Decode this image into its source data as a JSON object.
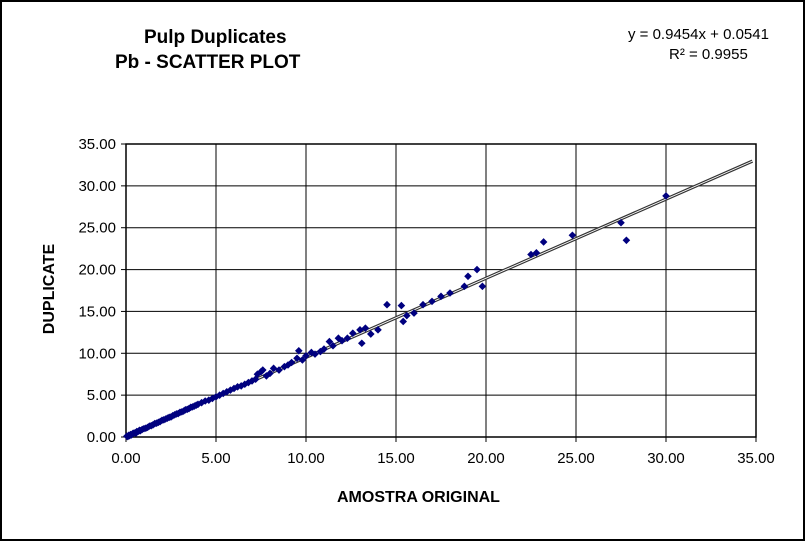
{
  "chart_data": {
    "type": "scatter",
    "title": "Pulp Duplicates",
    "subtitle": "Pb -  SCATTER PLOT",
    "xlabel": "AMOSTRA  ORIGINAL",
    "ylabel": "DUPLICATE",
    "xlim": [
      0,
      35
    ],
    "ylim": [
      0,
      35
    ],
    "xticks": [
      "0.00",
      "5.00",
      "10.00",
      "15.00",
      "20.00",
      "25.00",
      "30.00",
      "35.00"
    ],
    "yticks": [
      "0.00",
      "5.00",
      "10.00",
      "15.00",
      "20.00",
      "25.00",
      "30.00",
      "35.00"
    ],
    "grid": true,
    "trendline": {
      "equation": "y = 0.9454x + 0.0541",
      "r_squared": "R² = 0.9955",
      "slope": 0.9454,
      "intercept": 0.0541
    },
    "marker_color": "#00007f",
    "line_color": "#333333",
    "points": [
      [
        0.05,
        0.1
      ],
      [
        0.1,
        0.05
      ],
      [
        0.15,
        0.2
      ],
      [
        0.2,
        0.15
      ],
      [
        0.25,
        0.3
      ],
      [
        0.3,
        0.25
      ],
      [
        0.35,
        0.35
      ],
      [
        0.4,
        0.45
      ],
      [
        0.5,
        0.5
      ],
      [
        0.55,
        0.45
      ],
      [
        0.6,
        0.65
      ],
      [
        0.7,
        0.7
      ],
      [
        0.75,
        0.8
      ],
      [
        0.8,
        0.75
      ],
      [
        0.9,
        0.9
      ],
      [
        1.0,
        1.0
      ],
      [
        1.1,
        1.05
      ],
      [
        1.2,
        1.15
      ],
      [
        1.3,
        1.3
      ],
      [
        1.4,
        1.35
      ],
      [
        1.5,
        1.45
      ],
      [
        1.6,
        1.6
      ],
      [
        1.7,
        1.65
      ],
      [
        1.8,
        1.75
      ],
      [
        1.9,
        1.85
      ],
      [
        2.0,
        2.0
      ],
      [
        2.1,
        2.05
      ],
      [
        2.2,
        2.15
      ],
      [
        2.3,
        2.25
      ],
      [
        2.4,
        2.35
      ],
      [
        2.5,
        2.4
      ],
      [
        2.6,
        2.55
      ],
      [
        2.7,
        2.65
      ],
      [
        2.8,
        2.75
      ],
      [
        2.9,
        2.8
      ],
      [
        3.0,
        2.95
      ],
      [
        3.1,
        3.0
      ],
      [
        3.2,
        3.1
      ],
      [
        3.3,
        3.25
      ],
      [
        3.4,
        3.3
      ],
      [
        3.5,
        3.4
      ],
      [
        3.6,
        3.55
      ],
      [
        3.7,
        3.6
      ],
      [
        3.8,
        3.7
      ],
      [
        3.9,
        3.8
      ],
      [
        4.0,
        3.9
      ],
      [
        4.2,
        4.1
      ],
      [
        4.4,
        4.3
      ],
      [
        4.6,
        4.4
      ],
      [
        4.8,
        4.6
      ],
      [
        5.0,
        4.8
      ],
      [
        5.2,
        5.0
      ],
      [
        5.4,
        5.2
      ],
      [
        5.6,
        5.4
      ],
      [
        5.8,
        5.6
      ],
      [
        6.0,
        5.8
      ],
      [
        6.2,
        6.0
      ],
      [
        6.4,
        6.1
      ],
      [
        6.6,
        6.3
      ],
      [
        6.8,
        6.5
      ],
      [
        7.0,
        6.7
      ],
      [
        7.2,
        6.9
      ],
      [
        7.3,
        7.5
      ],
      [
        7.5,
        7.8
      ],
      [
        7.6,
        8.0
      ],
      [
        7.8,
        7.3
      ],
      [
        8.0,
        7.6
      ],
      [
        8.2,
        8.2
      ],
      [
        8.5,
        8.0
      ],
      [
        8.8,
        8.4
      ],
      [
        9.0,
        8.6
      ],
      [
        9.2,
        8.9
      ],
      [
        9.5,
        9.4
      ],
      [
        9.6,
        10.3
      ],
      [
        9.8,
        9.2
      ],
      [
        10.0,
        9.7
      ],
      [
        10.3,
        10.1
      ],
      [
        10.5,
        9.9
      ],
      [
        10.8,
        10.2
      ],
      [
        11.0,
        10.5
      ],
      [
        11.3,
        11.4
      ],
      [
        11.5,
        10.9
      ],
      [
        11.8,
        11.8
      ],
      [
        12.0,
        11.5
      ],
      [
        12.3,
        11.8
      ],
      [
        12.6,
        12.4
      ],
      [
        13.0,
        12.8
      ],
      [
        13.1,
        11.2
      ],
      [
        13.3,
        13.0
      ],
      [
        13.6,
        12.3
      ],
      [
        14.0,
        12.8
      ],
      [
        14.5,
        15.8
      ],
      [
        15.3,
        15.7
      ],
      [
        15.4,
        13.8
      ],
      [
        15.6,
        14.5
      ],
      [
        16.0,
        14.8
      ],
      [
        16.5,
        15.8
      ],
      [
        17.0,
        16.2
      ],
      [
        17.5,
        16.8
      ],
      [
        18.0,
        17.2
      ],
      [
        18.8,
        18.0
      ],
      [
        19.0,
        19.2
      ],
      [
        19.5,
        20.0
      ],
      [
        19.8,
        18.0
      ],
      [
        22.5,
        21.8
      ],
      [
        22.8,
        22.0
      ],
      [
        23.2,
        23.3
      ],
      [
        24.8,
        24.1
      ],
      [
        27.5,
        25.6
      ],
      [
        27.8,
        23.5
      ],
      [
        30.0,
        28.8
      ]
    ]
  }
}
